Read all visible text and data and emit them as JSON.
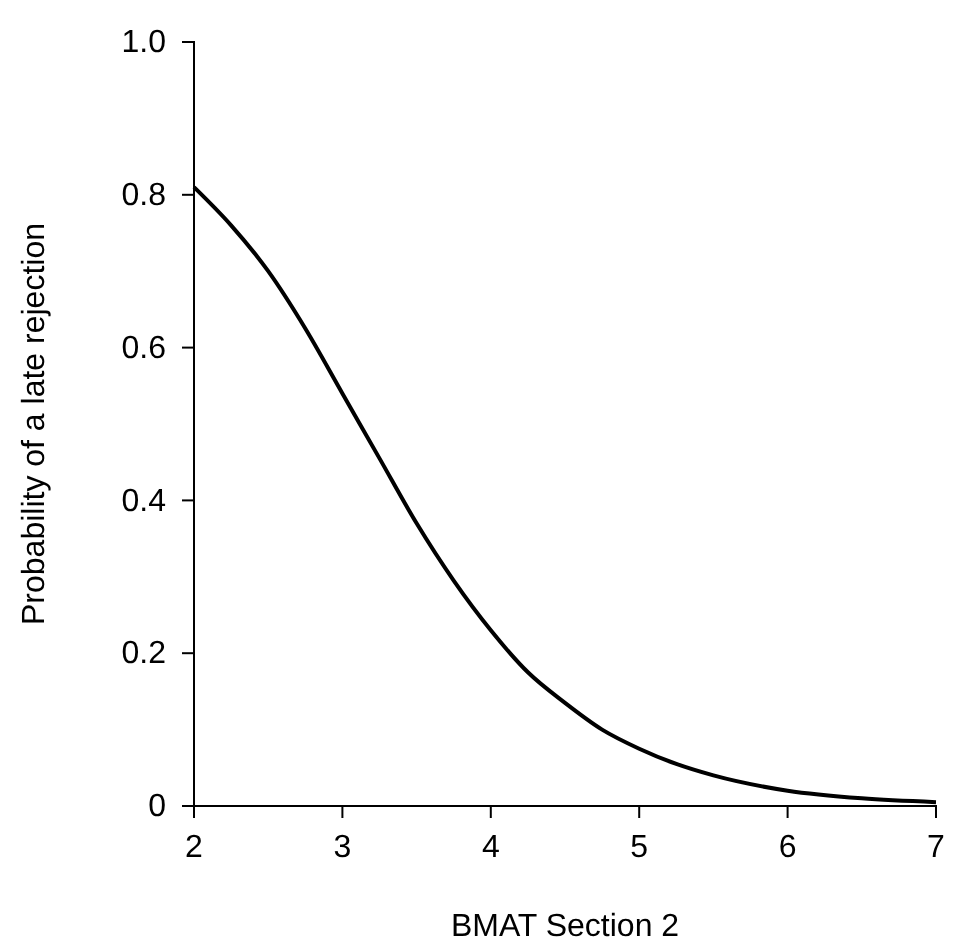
{
  "chart_data": {
    "type": "line",
    "xlabel": "BMAT Section 2",
    "ylabel": "Probability of a late rejection",
    "x": [
      2,
      2.25,
      2.5,
      2.75,
      3,
      3.25,
      3.5,
      3.75,
      4,
      4.25,
      4.5,
      4.75,
      5,
      5.25,
      5.5,
      6,
      6.5,
      7
    ],
    "series": [
      {
        "color": "#000000",
        "values": [
          0.81,
          0.76,
          0.7,
          0.625,
          0.54,
          0.455,
          0.37,
          0.295,
          0.23,
          0.175,
          0.135,
          0.1,
          0.075,
          0.055,
          0.04,
          0.02,
          0.01,
          0.005
        ]
      }
    ],
    "xlim": [
      2,
      7
    ],
    "xticks": [
      2,
      3,
      4,
      5,
      6,
      7
    ],
    "ylim": [
      0,
      1
    ],
    "yticks": [
      0,
      0.2,
      0.4,
      0.6,
      0.8,
      {
        "value": 1,
        "label": "1.0"
      }
    ],
    "grid": false,
    "marker": "none",
    "line_style": "solid"
  }
}
